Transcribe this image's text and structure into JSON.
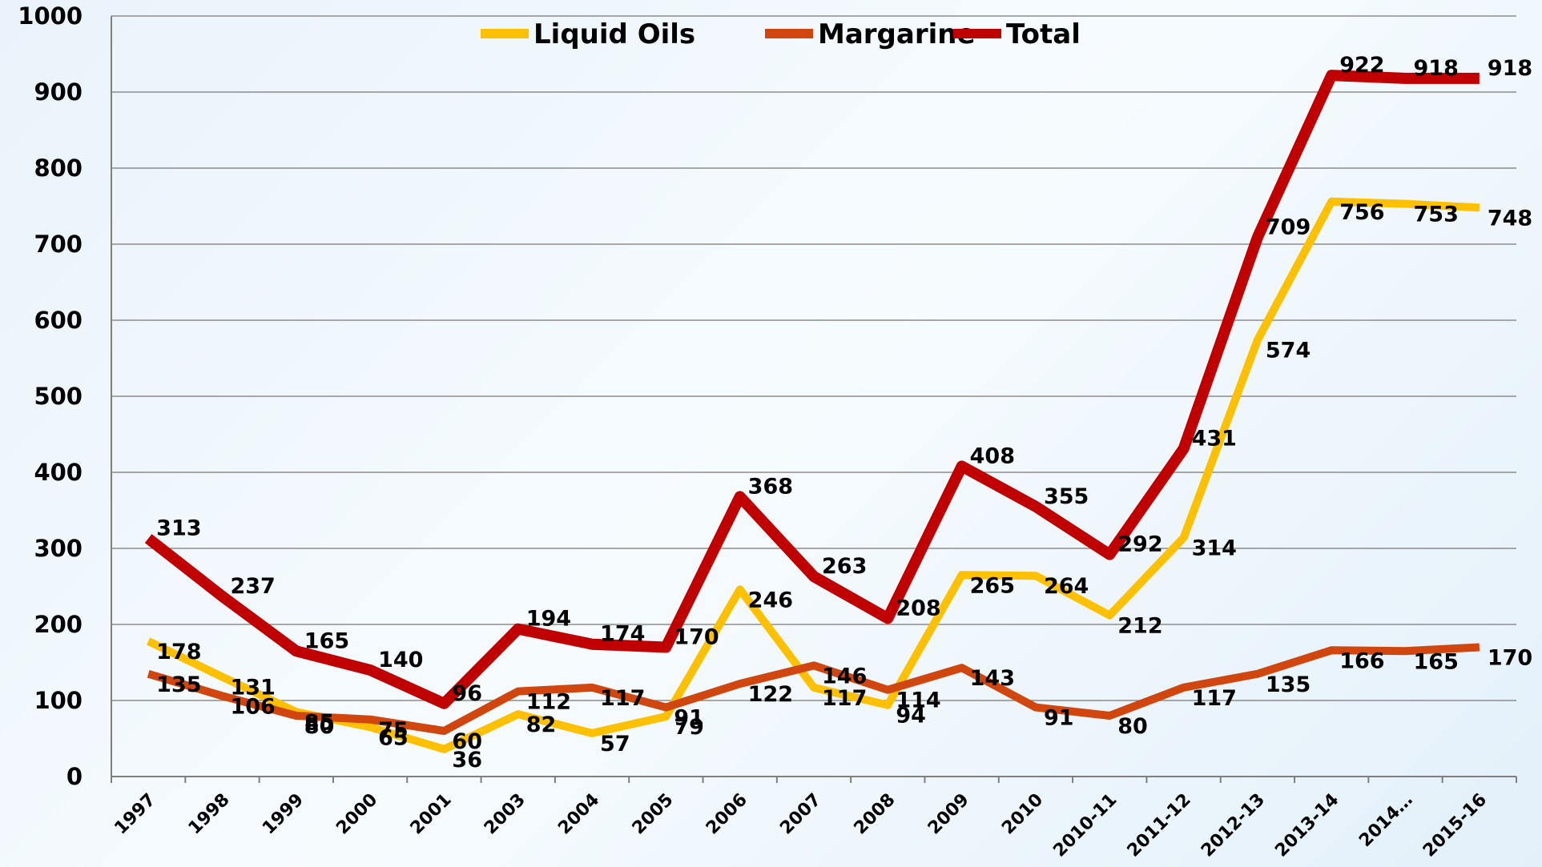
{
  "chart_data": {
    "type": "line",
    "categories": [
      "1997",
      "1998",
      "1999",
      "2000",
      "2001",
      "2003",
      "2004",
      "2005",
      "2006",
      "2007",
      "2008",
      "2009",
      "2010",
      "2010-11",
      "2011-12",
      "2012-13",
      "2013-14",
      "2014…",
      "2015-16"
    ],
    "series": [
      {
        "name": "Liquid Oils",
        "color": "#ffc000",
        "values": [
          178,
          131,
          85,
          65,
          36,
          82,
          57,
          79,
          246,
          117,
          94,
          265,
          264,
          212,
          314,
          574,
          756,
          753,
          748
        ]
      },
      {
        "name": "Margarine",
        "color": "#d0460e",
        "values": [
          135,
          106,
          80,
          75,
          60,
          112,
          117,
          91,
          122,
          146,
          114,
          143,
          91,
          80,
          117,
          135,
          166,
          165,
          170
        ]
      },
      {
        "name": "Total",
        "color": "#c00000",
        "values": [
          313,
          237,
          165,
          140,
          96,
          194,
          174,
          170,
          368,
          263,
          208,
          408,
          355,
          292,
          431,
          709,
          922,
          918,
          918
        ]
      }
    ],
    "ylim": [
      0,
      1000
    ],
    "yticks": [
      0,
      100,
      200,
      300,
      400,
      500,
      600,
      700,
      800,
      900,
      1000
    ],
    "grid": true,
    "legend": "top"
  }
}
